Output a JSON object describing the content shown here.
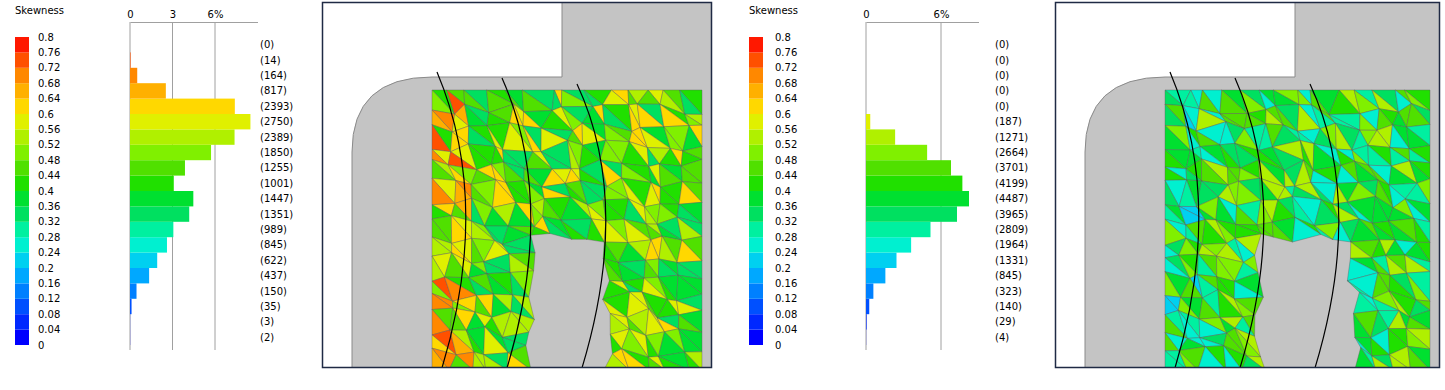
{
  "chart_data": [
    {
      "type": "histogram",
      "orientation": "horizontal",
      "grid": true,
      "y_label": "Skewness",
      "bins": [
        0,
        0.04,
        0.08,
        0.12,
        0.16,
        0.2,
        0.24,
        0.28,
        0.32,
        0.36,
        0.4,
        0.44,
        0.48,
        0.52,
        0.56,
        0.6,
        0.64,
        0.68,
        0.72,
        0.76,
        0.8
      ],
      "values": [
        0.01,
        0.01,
        0.11,
        0.46,
        1.35,
        1.92,
        2.61,
        3.06,
        4.18,
        4.47,
        3.09,
        3.88,
        5.72,
        7.38,
        8.5,
        7.4,
        2.53,
        0.51,
        0.04,
        0
      ],
      "count_labels": [
        "(2)",
        "(3)",
        "(35)",
        "(150)",
        "(437)",
        "(622)",
        "(845)",
        "(989)",
        "(1351)",
        "(1447)",
        "(1001)",
        "(1255)",
        "(1850)",
        "(2389)",
        "(2750)",
        "(2393)",
        "(817)",
        "(164)",
        "(14)",
        "(0)"
      ],
      "colors": [
        "#0000ff",
        "#0028ff",
        "#0050ff",
        "#0080ff",
        "#00a8ff",
        "#00d0f0",
        "#00f0d0",
        "#00f0a0",
        "#00e060",
        "#00e030",
        "#20e000",
        "#50e000",
        "#80f000",
        "#b0f000",
        "#e0f000",
        "#ffd800",
        "#ffb000",
        "#ff8800",
        "#ff5000",
        "#ff1800"
      ],
      "ylim": [
        0,
        0.8
      ],
      "yticks": [
        0,
        0.04,
        0.08,
        0.12,
        0.16,
        0.2,
        0.24,
        0.28,
        0.32,
        0.36,
        0.4,
        0.44,
        0.48,
        0.52,
        0.56,
        0.6,
        0.64,
        0.68,
        0.72,
        0.76,
        0.8
      ],
      "xlim": [
        0,
        9
      ],
      "xticks": [
        0,
        3,
        {
          "value": 6,
          "label": "6%"
        }
      ]
    },
    {
      "type": "histogram",
      "orientation": "horizontal",
      "grid": true,
      "y_label": "Skewness",
      "bins": [
        0,
        0.04,
        0.08,
        0.12,
        0.16,
        0.2,
        0.24,
        0.28,
        0.32,
        0.36,
        0.4,
        0.44,
        0.48,
        0.52,
        0.56,
        0.6,
        0.64,
        0.68,
        0.72,
        0.76,
        0.8
      ],
      "values": [
        0.01,
        0.05,
        0.26,
        0.59,
        1.55,
        2.44,
        3.61,
        5.16,
        7.28,
        8.24,
        7.71,
        6.8,
        4.89,
        2.33,
        0.34,
        0,
        0,
        0,
        0,
        0
      ],
      "count_labels": [
        "(4)",
        "(29)",
        "(140)",
        "(323)",
        "(845)",
        "(1331)",
        "(1964)",
        "(2809)",
        "(3965)",
        "(4487)",
        "(4199)",
        "(3701)",
        "(2664)",
        "(1271)",
        "(187)",
        "(0)",
        "(0)",
        "(0)",
        "(0)",
        "(0)"
      ],
      "colors": [
        "#0000ff",
        "#0028ff",
        "#0050ff",
        "#0080ff",
        "#00a8ff",
        "#00d0f0",
        "#00f0d0",
        "#00f0a0",
        "#00e060",
        "#00e030",
        "#20e000",
        "#50e000",
        "#80f000",
        "#b0f000",
        "#e0f000",
        "#ffd800",
        "#ffb000",
        "#ff8800",
        "#ff5000",
        "#ff1800"
      ],
      "ylim": [
        0,
        0.8
      ],
      "yticks": [
        0,
        0.04,
        0.08,
        0.12,
        0.16,
        0.2,
        0.24,
        0.28,
        0.32,
        0.36,
        0.4,
        0.44,
        0.48,
        0.52,
        0.56,
        0.6,
        0.64,
        0.68,
        0.72,
        0.76,
        0.8
      ],
      "xlim": [
        0,
        9
      ],
      "xticks": [
        0,
        {
          "value": 6,
          "label": "6%"
        }
      ]
    }
  ]
}
